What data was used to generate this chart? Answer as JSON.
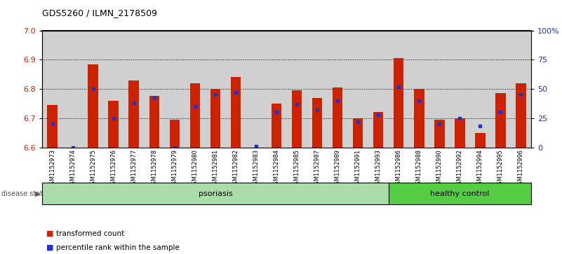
{
  "title": "GDS5260 / ILMN_2178509",
  "samples": [
    "GSM1152973",
    "GSM1152974",
    "GSM1152975",
    "GSM1152976",
    "GSM1152977",
    "GSM1152978",
    "GSM1152979",
    "GSM1152980",
    "GSM1152981",
    "GSM1152982",
    "GSM1152983",
    "GSM1152984",
    "GSM1152985",
    "GSM1152987",
    "GSM1152989",
    "GSM1152991",
    "GSM1152993",
    "GSM1152986",
    "GSM1152988",
    "GSM1152990",
    "GSM1152992",
    "GSM1152994",
    "GSM1152995",
    "GSM1152996"
  ],
  "transformed_counts": [
    6.745,
    6.6,
    6.885,
    6.76,
    6.83,
    6.775,
    6.695,
    6.82,
    6.8,
    6.84,
    6.6,
    6.75,
    6.795,
    6.77,
    6.805,
    6.7,
    6.72,
    6.905,
    6.8,
    6.695,
    6.7,
    6.65,
    6.785,
    6.82
  ],
  "percentile_ranks": [
    20,
    0,
    50,
    25,
    38,
    42,
    0,
    35,
    45,
    47,
    1,
    30,
    37,
    32,
    40,
    22,
    28,
    52,
    40,
    20,
    25,
    18,
    30,
    45
  ],
  "psoriasis_count": 17,
  "healthy_count": 7,
  "ymin": 6.6,
  "ymax": 7.0,
  "yticks_left": [
    6.6,
    6.7,
    6.8,
    6.9,
    7.0
  ],
  "yticks_right": [
    0,
    25,
    50,
    75,
    100
  ],
  "bar_color": "#cc2200",
  "blue_color": "#2233cc",
  "psoriasis_color": "#aaddaa",
  "healthy_color": "#55cc44",
  "bg_color": "#d0d0d0",
  "bar_base": 6.6,
  "bar_width": 0.5
}
